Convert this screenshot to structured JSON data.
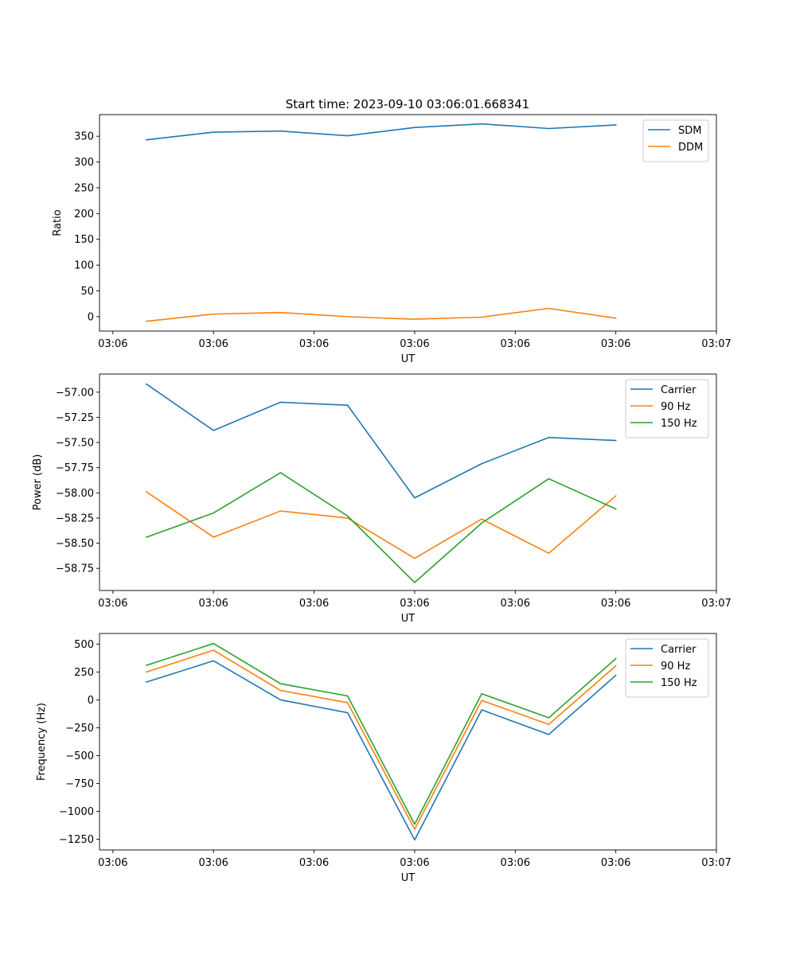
{
  "figure_title": "Start time: 2023-09-10 03:06:01.668341",
  "colors": {
    "blue": "#1f77b4",
    "orange": "#ff7f0e",
    "green": "#2ca02c"
  },
  "chart_data": [
    {
      "type": "line",
      "title": "Start time: 2023-09-10 03:06:01.668341",
      "xlabel": "UT",
      "ylabel": "Ratio",
      "x": [
        0,
        1,
        2,
        3,
        4,
        5,
        6,
        7
      ],
      "xlim": [
        -0.7,
        8.5
      ],
      "x_tick_positions": [
        -0.5,
        1,
        2.5,
        4,
        5.5,
        7,
        8.5
      ],
      "x_tick_labels": [
        "03:06",
        "03:06",
        "03:06",
        "03:06",
        "03:06",
        "03:06",
        "03:07"
      ],
      "ylim": [
        -28,
        392
      ],
      "y_ticks": [
        0,
        50,
        100,
        150,
        200,
        250,
        300,
        350
      ],
      "y_tick_labels": [
        "0",
        "50",
        "100",
        "150",
        "200",
        "250",
        "300",
        "350"
      ],
      "legend": "top-right",
      "series": [
        {
          "name": "SDM",
          "color": "#1f77b4",
          "values": [
            343,
            358,
            360,
            351,
            367,
            374,
            365,
            372
          ]
        },
        {
          "name": "DDM",
          "color": "#ff7f0e",
          "values": [
            -9,
            5,
            8,
            0,
            -5,
            -1,
            16,
            -3
          ]
        }
      ]
    },
    {
      "type": "line",
      "title": "",
      "xlabel": "UT",
      "ylabel": "Power (dB)",
      "x": [
        0,
        1,
        2,
        3,
        4,
        5,
        6,
        7
      ],
      "xlim": [
        -0.7,
        8.5
      ],
      "x_tick_positions": [
        -0.5,
        1,
        2.5,
        4,
        5.5,
        7,
        8.5
      ],
      "x_tick_labels": [
        "03:06",
        "03:06",
        "03:06",
        "03:06",
        "03:06",
        "03:06",
        "03:07"
      ],
      "ylim": [
        -58.97,
        -56.82
      ],
      "y_ticks": [
        -58.75,
        -58.5,
        -58.25,
        -58.0,
        -57.75,
        -57.5,
        -57.25,
        -57.0
      ],
      "y_tick_labels": [
        "−58.75",
        "−58.50",
        "−58.25",
        "−58.00",
        "−57.75",
        "−57.50",
        "−57.25",
        "−57.00"
      ],
      "legend": "top-right",
      "series": [
        {
          "name": "Carrier",
          "color": "#1f77b4",
          "values": [
            -56.92,
            -57.38,
            -57.1,
            -57.13,
            -58.05,
            -57.71,
            -57.45,
            -57.48
          ]
        },
        {
          "name": "90 Hz",
          "color": "#ff7f0e",
          "values": [
            -57.99,
            -58.44,
            -58.18,
            -58.25,
            -58.65,
            -58.26,
            -58.6,
            -58.03
          ]
        },
        {
          "name": "150 Hz",
          "color": "#2ca02c",
          "values": [
            -58.44,
            -58.2,
            -57.8,
            -58.23,
            -58.89,
            -58.3,
            -57.86,
            -58.16
          ]
        }
      ]
    },
    {
      "type": "line",
      "title": "",
      "xlabel": "UT",
      "ylabel": "Frequency (Hz)",
      "x": [
        0,
        1,
        2,
        3,
        4,
        5,
        6,
        7
      ],
      "xlim": [
        -0.7,
        8.5
      ],
      "x_tick_positions": [
        -0.5,
        1,
        2.5,
        4,
        5.5,
        7,
        8.5
      ],
      "x_tick_labels": [
        "03:06",
        "03:06",
        "03:06",
        "03:06",
        "03:06",
        "03:06",
        "03:07"
      ],
      "ylim": [
        -1345,
        595
      ],
      "y_ticks": [
        -1250,
        -1000,
        -750,
        -500,
        -250,
        0,
        250,
        500
      ],
      "y_tick_labels": [
        "−1250",
        "−1000",
        "−750",
        "−500",
        "−250",
        "0",
        "250",
        "500"
      ],
      "legend": "top-right",
      "series": [
        {
          "name": "Carrier",
          "color": "#1f77b4",
          "values": [
            160,
            350,
            0,
            -115,
            -1255,
            -90,
            -310,
            220
          ]
        },
        {
          "name": "90 Hz",
          "color": "#ff7f0e",
          "values": [
            250,
            445,
            85,
            -25,
            -1160,
            -5,
            -220,
            305
          ]
        },
        {
          "name": "150 Hz",
          "color": "#2ca02c",
          "values": [
            310,
            505,
            145,
            35,
            -1115,
            55,
            -160,
            370
          ]
        }
      ]
    }
  ]
}
